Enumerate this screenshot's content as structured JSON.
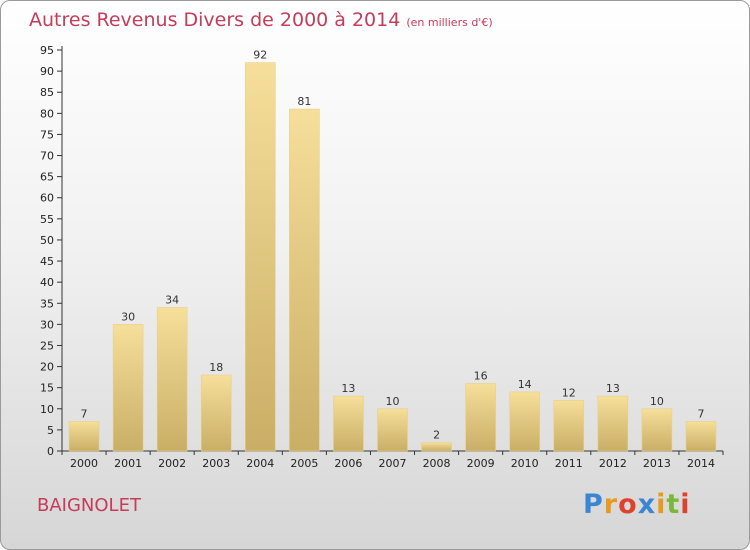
{
  "title": "Autres Revenus Divers de 2000 à 2014",
  "subtitle": "(en milliers d'€)",
  "place_name": "BAIGNOLET",
  "logo": {
    "letters": [
      "P",
      "r",
      "o",
      "x",
      "i",
      "t",
      "i"
    ],
    "colors": [
      "#3a86d4",
      "#e89a1c",
      "#e0402e",
      "#3a86d4",
      "#e89a1c",
      "#7ab83a",
      "#e0402e"
    ]
  },
  "colors": {
    "accent": "#c63b5a",
    "bar_light": "#f6df9a",
    "bar_dark": "#c9ae66",
    "axis": "#333333"
  },
  "chart_data": {
    "type": "bar",
    "title": "Autres Revenus Divers de 2000 à 2014",
    "subtitle": "(en milliers d'€)",
    "categories": [
      "2000",
      "2001",
      "2002",
      "2003",
      "2004",
      "2005",
      "2006",
      "2007",
      "2008",
      "2009",
      "2010",
      "2011",
      "2012",
      "2013",
      "2014"
    ],
    "values": [
      7,
      30,
      34,
      18,
      92,
      81,
      13,
      10,
      2,
      16,
      14,
      12,
      13,
      10,
      7
    ],
    "xlabel": "",
    "ylabel": "",
    "ylim": [
      0,
      95
    ],
    "yticks": [
      0,
      5,
      10,
      15,
      20,
      25,
      30,
      35,
      40,
      45,
      50,
      55,
      60,
      65,
      70,
      75,
      80,
      85,
      90,
      95
    ],
    "grid": false,
    "data_labels": true
  }
}
